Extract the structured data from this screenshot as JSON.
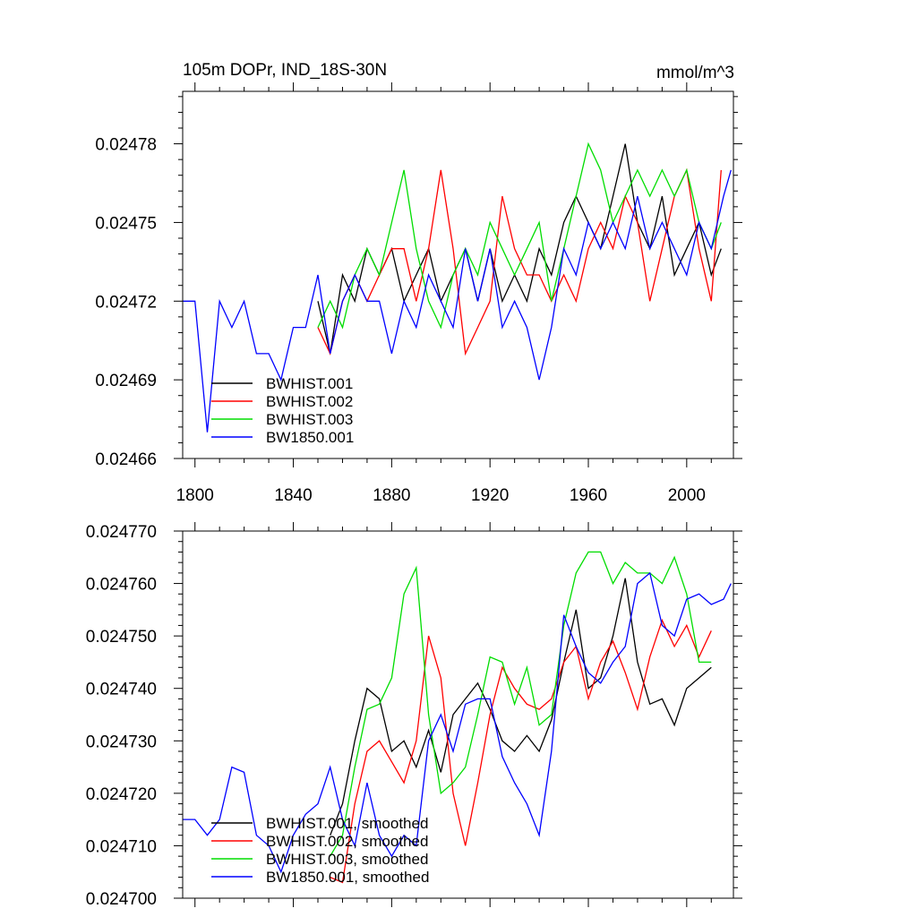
{
  "chart_data": [
    {
      "type": "line",
      "title": "105m DOPr, IND_18S-30N",
      "units": "mmol/m^3",
      "xlim": [
        1795,
        2019
      ],
      "ylim": [
        0.02466,
        0.0248
      ],
      "x_ticks": [
        1800,
        1840,
        1880,
        1920,
        1960,
        2000
      ],
      "y_ticks": [
        0.02466,
        0.02469,
        0.02472,
        0.02475,
        0.02478
      ],
      "y_tick_labels": [
        "0.02466",
        "0.02469",
        "0.02472",
        "0.02475",
        "0.02478"
      ],
      "legend_position": "bottom-left",
      "series": [
        {
          "name": "BWHIST.001",
          "color": "#000000",
          "x": [
            1850,
            1855,
            1860,
            1865,
            1870,
            1875,
            1880,
            1885,
            1890,
            1895,
            1900,
            1905,
            1910,
            1915,
            1920,
            1925,
            1930,
            1935,
            1940,
            1945,
            1950,
            1955,
            1960,
            1965,
            1970,
            1975,
            1980,
            1985,
            1990,
            1995,
            2000,
            2005,
            2010,
            2014
          ],
          "values": [
            0.02472,
            0.0247,
            0.02473,
            0.02472,
            0.02474,
            0.02473,
            0.02474,
            0.02472,
            0.02473,
            0.02474,
            0.02472,
            0.02473,
            0.02474,
            0.02472,
            0.02474,
            0.02472,
            0.02473,
            0.02472,
            0.02474,
            0.02473,
            0.02475,
            0.02476,
            0.02475,
            0.02474,
            0.02476,
            0.02478,
            0.02475,
            0.02474,
            0.02476,
            0.02473,
            0.02474,
            0.02475,
            0.02473,
            0.02474
          ]
        },
        {
          "name": "BWHIST.002",
          "color": "#ff0000",
          "x": [
            1850,
            1855,
            1860,
            1865,
            1870,
            1875,
            1880,
            1885,
            1890,
            1895,
            1900,
            1905,
            1910,
            1915,
            1920,
            1925,
            1930,
            1935,
            1940,
            1945,
            1950,
            1955,
            1960,
            1965,
            1970,
            1975,
            1980,
            1985,
            1990,
            1995,
            2000,
            2005,
            2010,
            2014
          ],
          "values": [
            0.02471,
            0.0247,
            0.02472,
            0.02473,
            0.02472,
            0.02473,
            0.02474,
            0.02474,
            0.02472,
            0.02474,
            0.02477,
            0.02474,
            0.0247,
            0.02471,
            0.02472,
            0.02476,
            0.02474,
            0.02473,
            0.02473,
            0.02472,
            0.02473,
            0.02472,
            0.02474,
            0.02475,
            0.02474,
            0.02476,
            0.02475,
            0.02472,
            0.02474,
            0.02476,
            0.02477,
            0.02474,
            0.02472,
            0.02477
          ]
        },
        {
          "name": "BWHIST.003",
          "color": "#00dd00",
          "x": [
            1850,
            1855,
            1860,
            1865,
            1870,
            1875,
            1880,
            1885,
            1890,
            1895,
            1900,
            1905,
            1910,
            1915,
            1920,
            1925,
            1930,
            1935,
            1940,
            1945,
            1950,
            1955,
            1960,
            1965,
            1970,
            1975,
            1980,
            1985,
            1990,
            1995,
            2000,
            2005,
            2010,
            2014
          ],
          "values": [
            0.02471,
            0.02472,
            0.02471,
            0.02473,
            0.02474,
            0.02473,
            0.02475,
            0.02477,
            0.02474,
            0.02472,
            0.02471,
            0.02473,
            0.02474,
            0.02473,
            0.02475,
            0.02474,
            0.02473,
            0.02474,
            0.02475,
            0.02472,
            0.02474,
            0.02476,
            0.02478,
            0.02477,
            0.02475,
            0.02476,
            0.02477,
            0.02476,
            0.02477,
            0.02476,
            0.02477,
            0.02475,
            0.02474,
            0.02475
          ]
        },
        {
          "name": "BW1850.001",
          "color": "#0000ff",
          "x": [
            1795,
            1800,
            1805,
            1810,
            1815,
            1820,
            1825,
            1830,
            1835,
            1840,
            1845,
            1850,
            1855,
            1860,
            1865,
            1870,
            1875,
            1880,
            1885,
            1890,
            1895,
            1900,
            1905,
            1910,
            1915,
            1920,
            1925,
            1930,
            1935,
            1940,
            1945,
            1950,
            1955,
            1960,
            1965,
            1970,
            1975,
            1980,
            1985,
            1990,
            1995,
            2000,
            2005,
            2010,
            2015,
            2018
          ],
          "values": [
            0.02472,
            0.02472,
            0.02467,
            0.02472,
            0.02471,
            0.02472,
            0.0247,
            0.0247,
            0.02469,
            0.02471,
            0.02471,
            0.02473,
            0.0247,
            0.02472,
            0.02473,
            0.02472,
            0.02472,
            0.0247,
            0.02472,
            0.02471,
            0.02473,
            0.02472,
            0.02471,
            0.02474,
            0.02472,
            0.02474,
            0.02471,
            0.02472,
            0.02471,
            0.02469,
            0.02471,
            0.02474,
            0.02473,
            0.02475,
            0.02474,
            0.02475,
            0.02474,
            0.02476,
            0.02474,
            0.02475,
            0.02474,
            0.02473,
            0.02475,
            0.02474,
            0.02476,
            0.02477
          ]
        }
      ]
    },
    {
      "type": "line",
      "title": "",
      "xlim": [
        1795,
        2019
      ],
      "ylim": [
        0.0247,
        0.02477
      ],
      "x_ticks": [
        1800,
        1840,
        1880,
        1920,
        1960,
        2000
      ],
      "y_ticks": [
        0.0247,
        0.02471,
        0.02472,
        0.02473,
        0.02474,
        0.02475,
        0.02476,
        0.02477
      ],
      "y_tick_labels": [
        "0.024700",
        "0.024710",
        "0.024720",
        "0.024730",
        "0.024740",
        "0.024750",
        "0.024760",
        "0.024770"
      ],
      "legend_position": "bottom-left",
      "series": [
        {
          "name": "BWHIST.001, smoothed",
          "color": "#000000",
          "x": [
            1855,
            1860,
            1865,
            1870,
            1875,
            1880,
            1885,
            1890,
            1895,
            1900,
            1905,
            1910,
            1915,
            1920,
            1925,
            1930,
            1935,
            1940,
            1945,
            1950,
            1955,
            1960,
            1965,
            1970,
            1975,
            1980,
            1985,
            1990,
            1995,
            2000,
            2005,
            2010
          ],
          "values": [
            0.024712,
            0.024718,
            0.02473,
            0.02474,
            0.024738,
            0.024728,
            0.02473,
            0.024725,
            0.024732,
            0.024724,
            0.024735,
            0.024738,
            0.024741,
            0.024736,
            0.02473,
            0.024728,
            0.024731,
            0.024728,
            0.024734,
            0.024745,
            0.024755,
            0.02474,
            0.024742,
            0.02475,
            0.024761,
            0.024745,
            0.024737,
            0.024738,
            0.024733,
            0.02474,
            0.024742,
            0.024744
          ]
        },
        {
          "name": "BWHIST.002, smoothed",
          "color": "#ff0000",
          "x": [
            1855,
            1860,
            1865,
            1870,
            1875,
            1880,
            1885,
            1890,
            1895,
            1900,
            1905,
            1910,
            1915,
            1920,
            1925,
            1930,
            1935,
            1940,
            1945,
            1950,
            1955,
            1960,
            1965,
            1970,
            1975,
            1980,
            1985,
            1990,
            1995,
            2000,
            2005,
            2010
          ],
          "values": [
            0.024704,
            0.024703,
            0.024718,
            0.024728,
            0.02473,
            0.024726,
            0.024722,
            0.02473,
            0.02475,
            0.024742,
            0.02472,
            0.02471,
            0.024722,
            0.024735,
            0.024744,
            0.02474,
            0.024737,
            0.024736,
            0.024738,
            0.024745,
            0.024748,
            0.024738,
            0.024745,
            0.024749,
            0.024743,
            0.024736,
            0.024746,
            0.024753,
            0.024748,
            0.024752,
            0.024746,
            0.024751
          ]
        },
        {
          "name": "BWHIST.003, smoothed",
          "color": "#00dd00",
          "x": [
            1855,
            1860,
            1865,
            1870,
            1875,
            1880,
            1885,
            1890,
            1895,
            1900,
            1905,
            1910,
            1915,
            1920,
            1925,
            1930,
            1935,
            1940,
            1945,
            1950,
            1955,
            1960,
            1965,
            1970,
            1975,
            1980,
            1985,
            1990,
            1995,
            2000,
            2005,
            2010
          ],
          "values": [
            0.024708,
            0.024712,
            0.024725,
            0.024736,
            0.024737,
            0.024742,
            0.024758,
            0.024763,
            0.024735,
            0.02472,
            0.024722,
            0.024725,
            0.024735,
            0.024746,
            0.024745,
            0.024737,
            0.024744,
            0.024733,
            0.024735,
            0.024752,
            0.024762,
            0.024766,
            0.024766,
            0.02476,
            0.024764,
            0.024762,
            0.024762,
            0.02476,
            0.024765,
            0.024758,
            0.024745,
            0.024745
          ]
        },
        {
          "name": "BW1850.001, smoothed",
          "color": "#0000ff",
          "x": [
            1795,
            1800,
            1805,
            1810,
            1815,
            1820,
            1825,
            1830,
            1835,
            1840,
            1845,
            1850,
            1855,
            1860,
            1865,
            1870,
            1875,
            1880,
            1885,
            1890,
            1895,
            1900,
            1905,
            1910,
            1915,
            1920,
            1925,
            1930,
            1935,
            1940,
            1945,
            1950,
            1955,
            1960,
            1965,
            1970,
            1975,
            1980,
            1985,
            1990,
            1995,
            2000,
            2005,
            2010,
            2015,
            2018
          ],
          "values": [
            0.024715,
            0.024715,
            0.024712,
            0.024715,
            0.024725,
            0.024724,
            0.024712,
            0.02471,
            0.024705,
            0.024712,
            0.024716,
            0.024718,
            0.024725,
            0.024715,
            0.02471,
            0.024722,
            0.024712,
            0.024708,
            0.024712,
            0.02471,
            0.02473,
            0.024735,
            0.024728,
            0.024737,
            0.024738,
            0.024738,
            0.024727,
            0.024722,
            0.024718,
            0.024712,
            0.024728,
            0.024754,
            0.024748,
            0.024743,
            0.024741,
            0.024745,
            0.024748,
            0.02476,
            0.024762,
            0.024752,
            0.02475,
            0.024757,
            0.024758,
            0.024756,
            0.024757,
            0.02476
          ]
        }
      ]
    }
  ]
}
